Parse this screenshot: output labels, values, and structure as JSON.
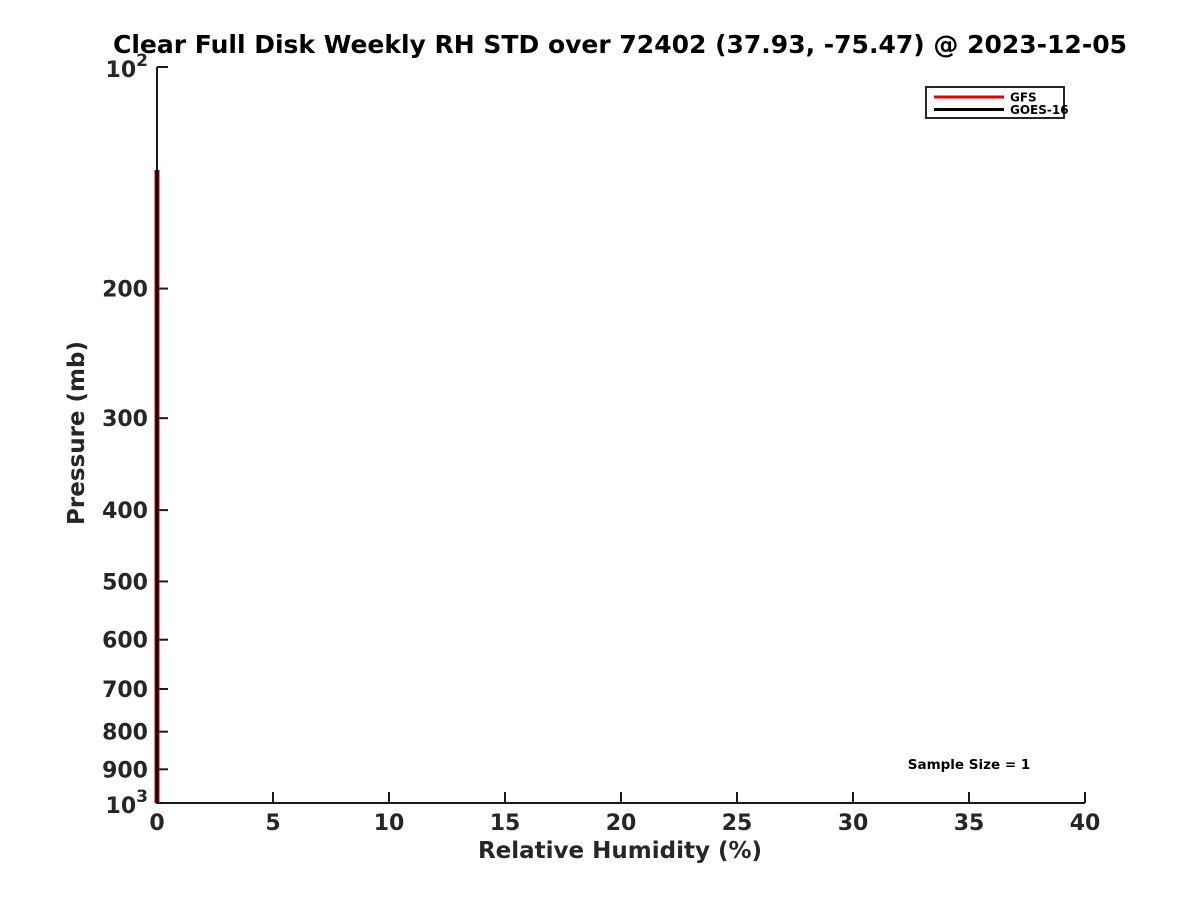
{
  "chart_data": {
    "type": "line",
    "title": "Clear Full Disk Weekly RH STD over 72402 (37.93, -75.47) @ 2023-12-05",
    "xlabel": "Relative Humidity (%)",
    "ylabel": "Pressure (mb)",
    "xlim": [
      0,
      40
    ],
    "x_ticks": [
      0,
      5,
      10,
      15,
      20,
      25,
      30,
      35,
      40
    ],
    "y_scale": "log",
    "y_axis_inverted": true,
    "ylim": [
      100,
      1000
    ],
    "y_ticks": [
      {
        "p": 100,
        "label": "10",
        "exp": "2"
      },
      {
        "p": 200,
        "label": "200"
      },
      {
        "p": 300,
        "label": "300"
      },
      {
        "p": 400,
        "label": "400"
      },
      {
        "p": 500,
        "label": "500"
      },
      {
        "p": 600,
        "label": "600"
      },
      {
        "p": 700,
        "label": "700"
      },
      {
        "p": 800,
        "label": "800"
      },
      {
        "p": 900,
        "label": "900"
      },
      {
        "p": 1000,
        "label": "10",
        "exp": "3"
      }
    ],
    "grid": false,
    "legend": {
      "position": "top-right",
      "entries": [
        {
          "label": "GFS",
          "color": "#e00000"
        },
        {
          "label": "GOES-16",
          "color": "#000000"
        }
      ]
    },
    "annotation": {
      "text": "Sample Size = 1",
      "rh": 35,
      "pressure": 885
    },
    "series": [
      {
        "name": "GFS",
        "color": "#e00000",
        "linewidth": 5,
        "rh": [
          0,
          0
        ],
        "pressure": [
          138,
          1000
        ]
      },
      {
        "name": "GOES-16",
        "color": "#000000",
        "linewidth": 3,
        "rh": [
          0,
          0
        ],
        "pressure": [
          138,
          1000
        ]
      }
    ],
    "colors": {
      "spine": "#1a1a1a",
      "legend_border": "#262626",
      "background": "#ffffff"
    }
  }
}
